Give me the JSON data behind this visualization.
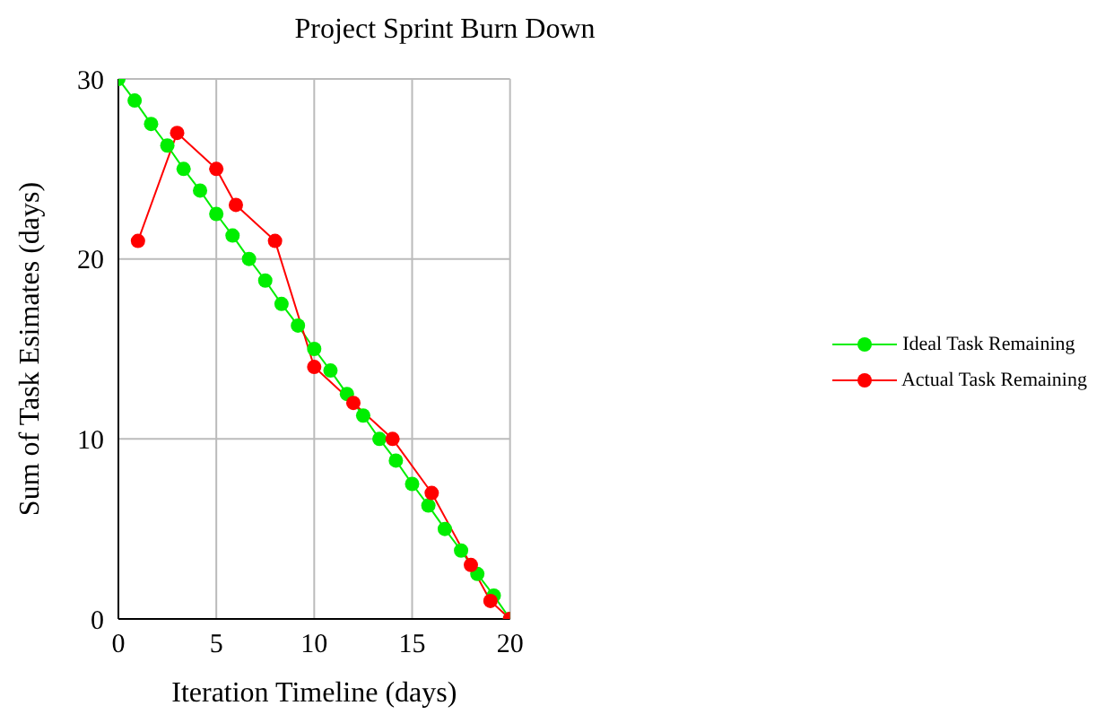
{
  "chart_data": {
    "type": "line",
    "title": "Project Sprint Burn Down",
    "xlabel": "Iteration Timeline (days)",
    "ylabel": "Sum of Task Esimates (days)",
    "xlim": [
      0,
      20
    ],
    "xticks": [
      0,
      5,
      10,
      15,
      20
    ],
    "ylim": [
      0,
      30
    ],
    "yticks": [
      0,
      10,
      20,
      30
    ],
    "grid": true,
    "legend": "right",
    "marker": "circle",
    "line_style": "solid",
    "series": [
      {
        "name": "Ideal Task Remaining",
        "color": "#00ee00",
        "x": [
          0,
          0.83,
          1.67,
          2.5,
          3.33,
          4.17,
          5,
          5.83,
          6.67,
          7.5,
          8.33,
          9.17,
          10,
          10.83,
          11.67,
          12.5,
          13.33,
          14.17,
          15,
          15.83,
          16.67,
          17.5,
          18.33,
          19.17,
          20
        ],
        "values": [
          30,
          28.8,
          27.5,
          26.3,
          25,
          23.8,
          22.5,
          21.3,
          20,
          18.8,
          17.5,
          16.3,
          15,
          13.8,
          12.5,
          11.3,
          10,
          8.8,
          7.5,
          6.3,
          5,
          3.8,
          2.5,
          1.3,
          0
        ]
      },
      {
        "name": "Actual Task Remaining",
        "color": "#ff0000",
        "x": [
          1,
          3,
          5,
          6,
          8,
          10,
          12,
          14,
          16,
          18,
          19,
          20
        ],
        "values": [
          21,
          27,
          25,
          23,
          21,
          14,
          12,
          10,
          7,
          3,
          1,
          0
        ]
      }
    ]
  }
}
